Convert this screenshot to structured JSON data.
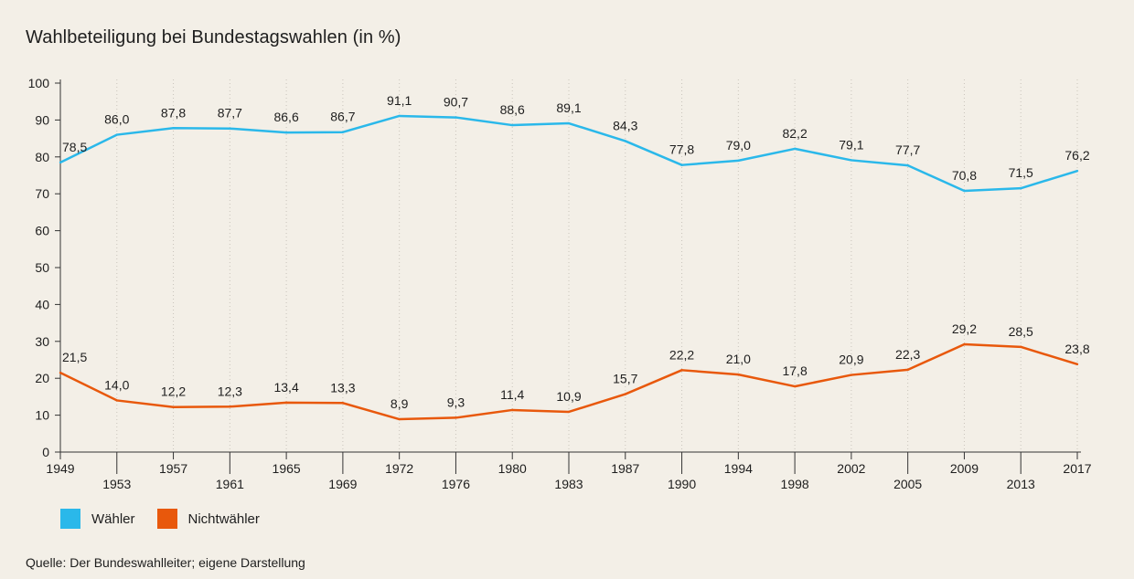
{
  "title": "Wahlbeteiligung bei Bundestagswahlen (in %)",
  "source": "Quelle: Der Bundeswahlleiter; eigene Darstellung",
  "legend": [
    {
      "label": "Wähler",
      "color": "#2ab8ea"
    },
    {
      "label": "Nichtwähler",
      "color": "#e8580c"
    }
  ],
  "chart_data": {
    "type": "line",
    "x": [
      "1949",
      "1953",
      "1957",
      "1961",
      "1965",
      "1969",
      "1972",
      "1976",
      "1980",
      "1983",
      "1987",
      "1990",
      "1994",
      "1998",
      "2002",
      "2005",
      "2009",
      "2013",
      "2017"
    ],
    "ylim": [
      0,
      100
    ],
    "yticks": [
      0,
      10,
      20,
      30,
      40,
      50,
      60,
      70,
      80,
      90,
      100
    ],
    "grid": "vertical dotted",
    "series": [
      {
        "name": "Wähler",
        "color": "#2ab8ea",
        "values": [
          78.5,
          86.0,
          87.8,
          87.7,
          86.6,
          86.7,
          91.1,
          90.7,
          88.6,
          89.1,
          84.3,
          77.8,
          79.0,
          82.2,
          79.1,
          77.7,
          70.8,
          71.5,
          76.2
        ],
        "labels": [
          "78,5",
          "86,0",
          "87,8",
          "87,7",
          "86,6",
          "86,7",
          "91,1",
          "90,7",
          "88,6",
          "89,1",
          "84,3",
          "77,8",
          "79,0",
          "82,2",
          "79,1",
          "77,7",
          "70,8",
          "71,5",
          "76,2"
        ]
      },
      {
        "name": "Nichtwähler",
        "color": "#e8580c",
        "values": [
          21.5,
          14.0,
          12.2,
          12.3,
          13.4,
          13.3,
          8.9,
          9.3,
          11.4,
          10.9,
          15.7,
          22.2,
          21.0,
          17.8,
          20.9,
          22.3,
          29.2,
          28.5,
          23.8
        ],
        "labels": [
          "21,5",
          "14,0",
          "12,2",
          "12,3",
          "13,4",
          "13,3",
          "8,9",
          "9,3",
          "11,4",
          "10,9",
          "15,7",
          "22,2",
          "21,0",
          "17,8",
          "20,9",
          "22,3",
          "29,2",
          "28,5",
          "23,8"
        ]
      }
    ]
  }
}
